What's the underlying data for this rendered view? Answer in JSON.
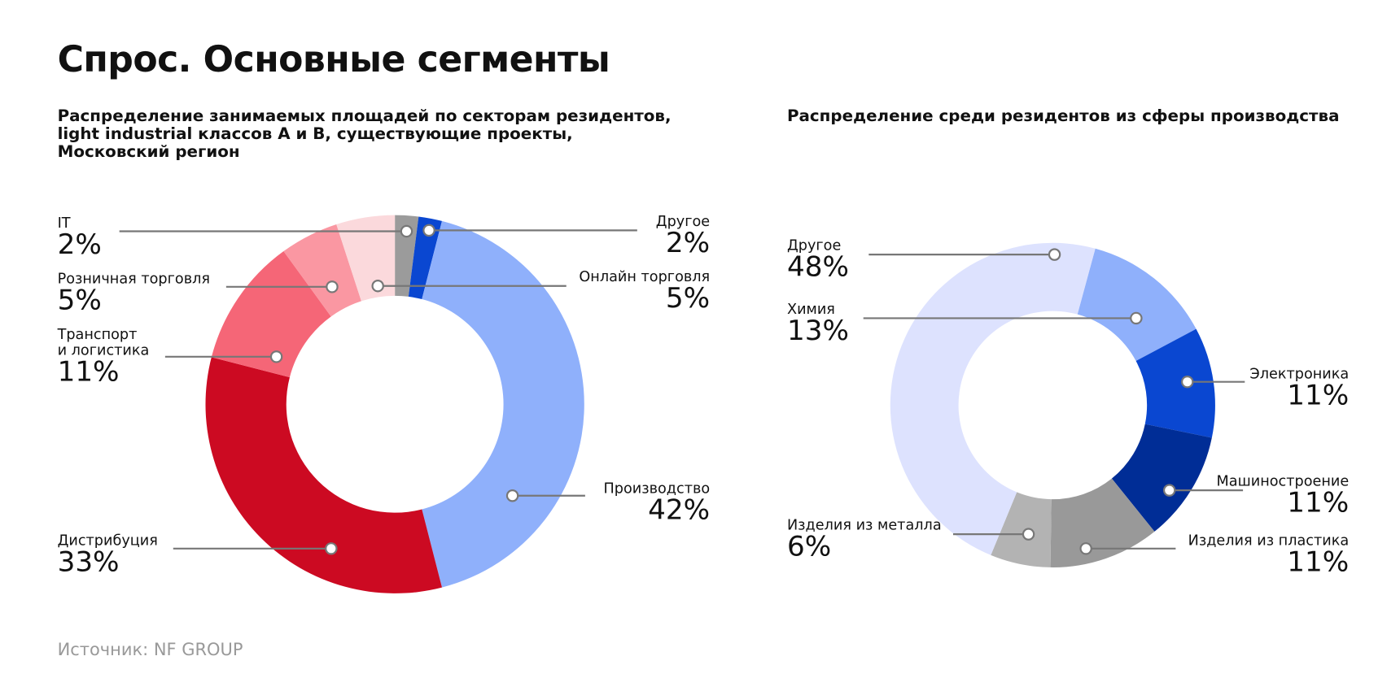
{
  "title": "Спрос. Основные сегменты",
  "source": "Источник: NF GROUP",
  "chart_data": [
    {
      "type": "pie",
      "title": "Распределение занимаемых площадей по секторам резидентов,\nlight industrial классов А и В, существующие проекты,\nМосковский регион",
      "categories": [
        "IT",
        "Другое",
        "Производство",
        "Дистрибуция",
        "Транспорт\nи логистика",
        "Розничная торговля",
        "Онлайн торговля"
      ],
      "values": [
        2,
        2,
        42,
        33,
        11,
        5,
        5
      ],
      "value_labels": [
        "2%",
        "2%",
        "42%",
        "33%",
        "11%",
        "5%",
        "5%"
      ],
      "colors": [
        "#9b9b9b",
        "#0a47d1",
        "#8fb0fb",
        "#cc0a22",
        "#f56677",
        "#fa97a2",
        "#fbd9dc"
      ]
    },
    {
      "type": "pie",
      "title": "Распределение среди резидентов из сферы производства",
      "categories": [
        "Химия",
        "Электроника",
        "Машиностроение",
        "Изделия из пластика",
        "Изделия из металла",
        "Другое"
      ],
      "values": [
        13,
        11,
        11,
        11,
        6,
        48
      ],
      "value_labels": [
        "13%",
        "11%",
        "11%",
        "11%",
        "6%",
        "48%"
      ],
      "colors": [
        "#8fb0fb",
        "#0a47d1",
        "#002d96",
        "#999999",
        "#b3b3b3",
        "#dde2fe"
      ]
    }
  ]
}
